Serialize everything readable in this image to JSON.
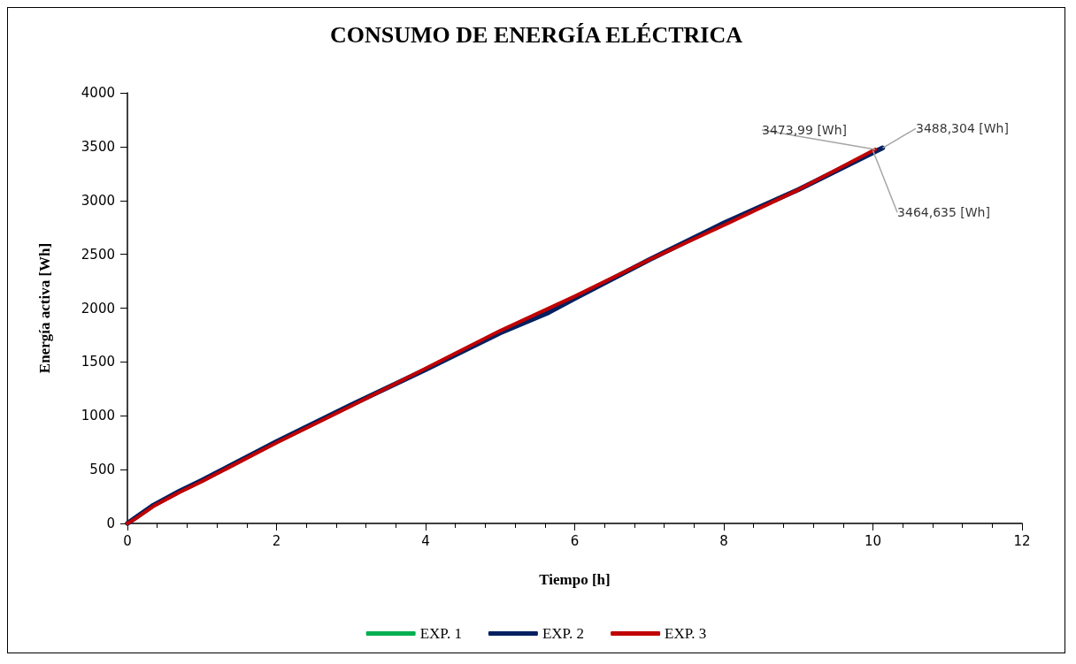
{
  "chart_data": {
    "type": "line",
    "title": "CONSUMO DE ENERGÍA ELÉCTRICA",
    "xlabel": "Tiempo [h]",
    "ylabel": "Energía activa [Wh]",
    "xlim": [
      0,
      12
    ],
    "xticks": [
      0,
      2,
      4,
      6,
      8,
      10,
      12
    ],
    "ylim": [
      0,
      4000
    ],
    "yticks": [
      0,
      500,
      1000,
      1500,
      2000,
      2500,
      3000,
      3500,
      4000
    ],
    "grid": false,
    "legend": "bottom",
    "marker": "none",
    "line_style": "solid",
    "series": [
      {
        "name": "EXP. 1",
        "color": "#00b050"
      },
      {
        "name": "EXP. 2",
        "color": "#002060",
        "x": [
          0,
          0.1,
          0.35,
          0.7,
          1,
          2,
          3,
          4,
          5,
          5.65,
          6,
          7,
          8,
          9,
          10.13
        ],
        "values": [
          0,
          50,
          170,
          300,
          400,
          760,
          1100,
          1430,
          1770,
          1960,
          2090,
          2450,
          2790,
          3100,
          3488.304
        ]
      },
      {
        "name": "EXP. 3",
        "color": "#c00000",
        "x": [
          0,
          0.1,
          0.35,
          0.7,
          1,
          2,
          3,
          4,
          5,
          6,
          7,
          8,
          9,
          10.03
        ],
        "values": [
          0,
          40,
          160,
          290,
          390,
          750,
          1090,
          1440,
          1790,
          2110,
          2450,
          2770,
          3100,
          3473.99
        ]
      }
    ],
    "annotations": [
      {
        "text": "3464,635 [Wh]",
        "x": 10,
        "y": 3464.635
      },
      {
        "text": "3488,304 [Wh]",
        "x": 10.13,
        "y": 3488.304
      },
      {
        "text": "3473,99 [Wh]",
        "x": 10.03,
        "y": 3473.99
      }
    ]
  }
}
